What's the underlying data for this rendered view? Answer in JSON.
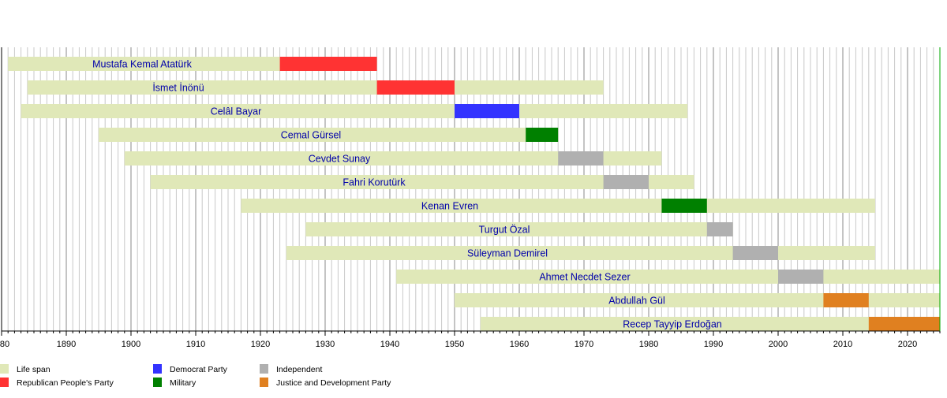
{
  "chart_data": {
    "type": "timeline",
    "title": "",
    "xlim": [
      1880,
      2025
    ],
    "x_major_ticks": [
      1880,
      1890,
      1900,
      1910,
      1920,
      1930,
      1940,
      1950,
      1960,
      1970,
      1980,
      1990,
      2000,
      2010,
      2020
    ],
    "x_tick_labels": [
      "80",
      "1890",
      "1900",
      "1910",
      "1920",
      "1930",
      "1940",
      "1950",
      "1960",
      "1970",
      "1980",
      "1990",
      "2000",
      "2010",
      "2020"
    ],
    "grid": true,
    "legend_position": "bottom-left",
    "categories": {
      "life": {
        "label": "Life span",
        "color": "#e0e8b8"
      },
      "chp": {
        "label": "Republican People's Party",
        "color": "#ff3333"
      },
      "dp": {
        "label": "Democrat Party",
        "color": "#3333ff"
      },
      "mil": {
        "label": "Military",
        "color": "#008000"
      },
      "ind": {
        "label": "Independent",
        "color": "#b0b0b0"
      },
      "akp": {
        "label": "Justice and Development Party",
        "color": "#e08020"
      }
    },
    "legend_order": [
      "life",
      "chp",
      "dp",
      "mil",
      "ind",
      "akp"
    ],
    "rows": [
      {
        "name": "Mustafa Kemal Atatürk",
        "life": [
          1881,
          1938
        ],
        "term": [
          1923,
          1938
        ],
        "party": "chp"
      },
      {
        "name": "İsmet İnönü",
        "life": [
          1884,
          1973
        ],
        "term": [
          1938,
          1950
        ],
        "party": "chp"
      },
      {
        "name": "Celâl Bayar",
        "life": [
          1883,
          1986
        ],
        "term": [
          1950,
          1960
        ],
        "party": "dp"
      },
      {
        "name": "Cemal Gürsel",
        "life": [
          1895,
          1966
        ],
        "term": [
          1961,
          1966
        ],
        "party": "mil"
      },
      {
        "name": "Cevdet Sunay",
        "life": [
          1899,
          1982
        ],
        "term": [
          1966,
          1973
        ],
        "party": "ind"
      },
      {
        "name": "Fahri Korutürk",
        "life": [
          1903,
          1987
        ],
        "term": [
          1973,
          1980
        ],
        "party": "ind"
      },
      {
        "name": "Kenan Evren",
        "life": [
          1917,
          2015
        ],
        "term": [
          1982,
          1989
        ],
        "party": "mil"
      },
      {
        "name": "Turgut Özal",
        "life": [
          1927,
          1993
        ],
        "term": [
          1989,
          1993
        ],
        "party": "ind"
      },
      {
        "name": "Süleyman Demirel",
        "life": [
          1924,
          2015
        ],
        "term": [
          1993,
          2000
        ],
        "party": "ind"
      },
      {
        "name": "Ahmet Necdet Sezer",
        "life": [
          1941,
          2025
        ],
        "term": [
          2000,
          2007
        ],
        "party": "ind"
      },
      {
        "name": "Abdullah Gül",
        "life": [
          1950,
          2025
        ],
        "term": [
          2007,
          2014
        ],
        "party": "akp"
      },
      {
        "name": "Recep Tayyip Erdoğan",
        "life": [
          1954,
          2025
        ],
        "term": [
          2014,
          2025
        ],
        "party": "akp"
      }
    ],
    "label_color": "#0000aa",
    "today_line_color": "#00aa00"
  }
}
